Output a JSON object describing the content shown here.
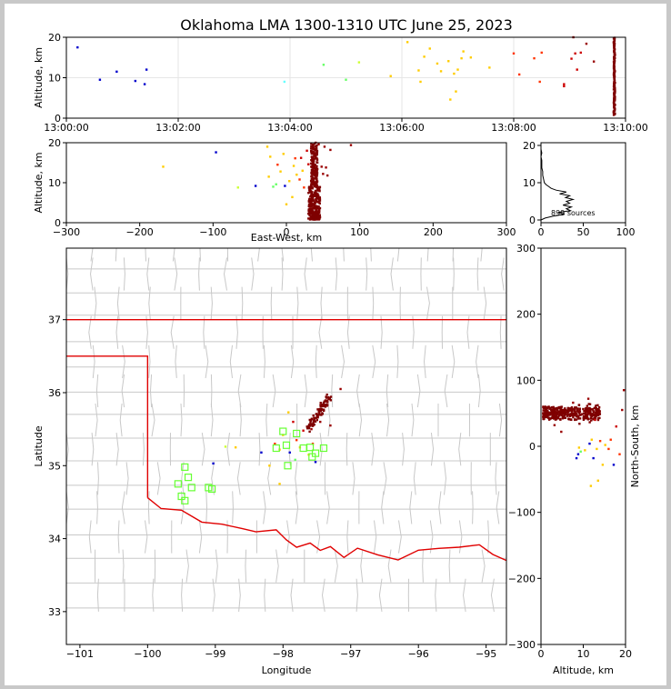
{
  "figure": {
    "title": "Oklahoma LMA 1300-1310 UTC June 25, 2023",
    "colors": {
      "background": "#c8c8c8",
      "panel": "#ffffff",
      "grid": "#e6e6e6",
      "county": "#c8c8c8",
      "state": "#e00000",
      "station": "#66ff33"
    }
  },
  "chart_data": [
    {
      "id": "time-height",
      "type": "scatter",
      "ylabel": "Altitude, km",
      "xlim": [
        "13:00:00",
        "13:10:00"
      ],
      "ylim": [
        0,
        20
      ],
      "xticks": [
        "13:00:00",
        "13:02:00",
        "13:04:00",
        "13:06:00",
        "13:08:00",
        "13:10:00"
      ],
      "yticks": [
        0,
        10,
        20
      ],
      "grid": true,
      "points": [
        {
          "t": "13:00:12",
          "alt": 17.5,
          "color": "#0000cc"
        },
        {
          "t": "13:00:36",
          "alt": 9.5,
          "color": "#0000cc"
        },
        {
          "t": "13:00:54",
          "alt": 11.5,
          "color": "#0000cc"
        },
        {
          "t": "13:01:14",
          "alt": 9.2,
          "color": "#0000cc"
        },
        {
          "t": "13:01:24",
          "alt": 8.4,
          "color": "#0000cc"
        },
        {
          "t": "13:01:26",
          "alt": 12.0,
          "color": "#0000cc"
        },
        {
          "t": "13:03:54",
          "alt": 9.0,
          "color": "#66ffff"
        },
        {
          "t": "13:04:36",
          "alt": 13.2,
          "color": "#66ff66"
        },
        {
          "t": "13:05:00",
          "alt": 9.5,
          "color": "#66ff66"
        },
        {
          "t": "13:05:14",
          "alt": 13.8,
          "color": "#ccff33"
        },
        {
          "t": "13:05:48",
          "alt": 10.4,
          "color": "#ffcc00"
        },
        {
          "t": "13:06:06",
          "alt": 18.8,
          "color": "#ffcc00"
        },
        {
          "t": "13:06:18",
          "alt": 11.8,
          "color": "#ffcc00"
        },
        {
          "t": "13:06:20",
          "alt": 9.0,
          "color": "#ffcc00"
        },
        {
          "t": "13:06:24",
          "alt": 15.2,
          "color": "#ffcc00"
        },
        {
          "t": "13:06:30",
          "alt": 17.2,
          "color": "#ffcc00"
        },
        {
          "t": "13:06:38",
          "alt": 13.5,
          "color": "#ffcc00"
        },
        {
          "t": "13:06:42",
          "alt": 11.6,
          "color": "#ffcc00"
        },
        {
          "t": "13:06:50",
          "alt": 14.1,
          "color": "#ffcc00"
        },
        {
          "t": "13:06:52",
          "alt": 4.6,
          "color": "#ffcc00"
        },
        {
          "t": "13:06:56",
          "alt": 11.0,
          "color": "#ffcc00"
        },
        {
          "t": "13:06:58",
          "alt": 6.6,
          "color": "#ffcc00"
        },
        {
          "t": "13:07:00",
          "alt": 12.0,
          "color": "#ffcc00"
        },
        {
          "t": "13:07:04",
          "alt": 14.8,
          "color": "#ffcc00"
        },
        {
          "t": "13:07:06",
          "alt": 16.5,
          "color": "#ffcc00"
        },
        {
          "t": "13:07:14",
          "alt": 15.0,
          "color": "#ffcc00"
        },
        {
          "t": "13:07:34",
          "alt": 12.5,
          "color": "#ffcc00"
        },
        {
          "t": "13:08:00",
          "alt": 16.0,
          "color": "#ff3300"
        },
        {
          "t": "13:08:06",
          "alt": 10.8,
          "color": "#ff3300"
        },
        {
          "t": "13:08:22",
          "alt": 14.8,
          "color": "#ff3300"
        },
        {
          "t": "13:08:28",
          "alt": 9.0,
          "color": "#ff3300"
        },
        {
          "t": "13:08:30",
          "alt": 16.2,
          "color": "#ff3300"
        },
        {
          "t": "13:08:54",
          "alt": 8.4,
          "color": "#cc0000"
        },
        {
          "t": "13:08:54",
          "alt": 7.9,
          "color": "#cc0000"
        },
        {
          "t": "13:09:02",
          "alt": 14.7,
          "color": "#cc0000"
        },
        {
          "t": "13:09:04",
          "alt": 20.0,
          "color": "#990000"
        },
        {
          "t": "13:09:06",
          "alt": 16.0,
          "color": "#cc0000"
        },
        {
          "t": "13:09:08",
          "alt": 12.0,
          "color": "#cc0000"
        },
        {
          "t": "13:09:12",
          "alt": 16.2,
          "color": "#cc0000"
        },
        {
          "t": "13:09:18",
          "alt": 18.4,
          "color": "#990000"
        },
        {
          "t": "13:09:26",
          "alt": 14.0,
          "color": "#990000"
        }
      ],
      "column": {
        "t": "13:09:48",
        "alt_min": 0.8,
        "alt_max": 20.0,
        "color": "#7f0000"
      }
    },
    {
      "id": "east-west-altitude",
      "type": "scatter",
      "xlabel": "East-West, km",
      "ylabel": "Altitude, km",
      "xlim": [
        -300,
        300
      ],
      "ylim": [
        0,
        20
      ],
      "xticks": [
        -300,
        -200,
        -100,
        0,
        100,
        200,
        300
      ],
      "yticks": [
        0,
        10,
        20
      ],
      "points": [
        {
          "x": -168,
          "alt": 14.0,
          "color": "#ffcc00"
        },
        {
          "x": -96,
          "alt": 17.6,
          "color": "#0000cc"
        },
        {
          "x": -66,
          "alt": 8.8,
          "color": "#ccff33"
        },
        {
          "x": -42,
          "alt": 9.2,
          "color": "#0000cc"
        },
        {
          "x": -26,
          "alt": 19.0,
          "color": "#ffcc00"
        },
        {
          "x": -24,
          "alt": 11.5,
          "color": "#ffcc00"
        },
        {
          "x": -22,
          "alt": 16.5,
          "color": "#ffcc00"
        },
        {
          "x": -18,
          "alt": 9.0,
          "color": "#66ff66"
        },
        {
          "x": -14,
          "alt": 9.6,
          "color": "#66ff66"
        },
        {
          "x": -12,
          "alt": 14.5,
          "color": "#ff3300"
        },
        {
          "x": -8,
          "alt": 12.8,
          "color": "#ffcc00"
        },
        {
          "x": -4,
          "alt": 17.2,
          "color": "#ffcc00"
        },
        {
          "x": -2,
          "alt": 9.2,
          "color": "#0000cc"
        },
        {
          "x": 0,
          "alt": 4.6,
          "color": "#ffcc00"
        },
        {
          "x": 4,
          "alt": 10.4,
          "color": "#ffcc00"
        },
        {
          "x": 8,
          "alt": 6.4,
          "color": "#ffcc00"
        },
        {
          "x": 10,
          "alt": 14.2,
          "color": "#ffcc00"
        },
        {
          "x": 12,
          "alt": 16.1,
          "color": "#ff3300"
        },
        {
          "x": 14,
          "alt": 12.0,
          "color": "#ffcc00"
        },
        {
          "x": 18,
          "alt": 10.8,
          "color": "#ff3300"
        },
        {
          "x": 20,
          "alt": 16.2,
          "color": "#cc0000"
        },
        {
          "x": 22,
          "alt": 13.0,
          "color": "#ffcc00"
        },
        {
          "x": 24,
          "alt": 8.8,
          "color": "#ff3300"
        },
        {
          "x": 28,
          "alt": 18.0,
          "color": "#cc0000"
        },
        {
          "x": 30,
          "alt": 14.6,
          "color": "#cc0000"
        },
        {
          "x": 38,
          "alt": 12.0,
          "color": "#990000"
        },
        {
          "x": 40,
          "alt": 20.0,
          "color": "#990000"
        },
        {
          "x": 44,
          "alt": 19.6,
          "color": "#990000"
        },
        {
          "x": 48,
          "alt": 14.0,
          "color": "#990000"
        },
        {
          "x": 50,
          "alt": 12.2,
          "color": "#990000"
        },
        {
          "x": 52,
          "alt": 19.0,
          "color": "#990000"
        },
        {
          "x": 54,
          "alt": 13.8,
          "color": "#990000"
        },
        {
          "x": 56,
          "alt": 11.8,
          "color": "#990000"
        },
        {
          "x": 60,
          "alt": 18.2,
          "color": "#990000"
        },
        {
          "x": 88,
          "alt": 19.4,
          "color": "#990000"
        }
      ],
      "column": {
        "x_min": 30,
        "x_max": 46,
        "alt_min": 0.8,
        "alt_max": 20.0,
        "color": "#7f0000"
      }
    },
    {
      "id": "source-histogram",
      "type": "line",
      "xlim": [
        0,
        100
      ],
      "ylim": [
        0,
        20
      ],
      "xticks": [
        0,
        50,
        100
      ],
      "yticks": [
        0,
        10,
        20
      ],
      "annotation": "899 sources",
      "profile": [
        {
          "alt": 0,
          "count": 0
        },
        {
          "alt": 0.5,
          "count": 5
        },
        {
          "alt": 1.0,
          "count": 14
        },
        {
          "alt": 1.5,
          "count": 28
        },
        {
          "alt": 2.0,
          "count": 20
        },
        {
          "alt": 2.5,
          "count": 35
        },
        {
          "alt": 3.0,
          "count": 30
        },
        {
          "alt": 3.5,
          "count": 36
        },
        {
          "alt": 4.0,
          "count": 26
        },
        {
          "alt": 4.5,
          "count": 34
        },
        {
          "alt": 5.0,
          "count": 30
        },
        {
          "alt": 5.5,
          "count": 38
        },
        {
          "alt": 6.0,
          "count": 29
        },
        {
          "alt": 6.5,
          "count": 34
        },
        {
          "alt": 7.0,
          "count": 22
        },
        {
          "alt": 7.5,
          "count": 30
        },
        {
          "alt": 8.0,
          "count": 18
        },
        {
          "alt": 8.5,
          "count": 12
        },
        {
          "alt": 9.0,
          "count": 9
        },
        {
          "alt": 9.5,
          "count": 6
        },
        {
          "alt": 10.0,
          "count": 4
        },
        {
          "alt": 11.0,
          "count": 3
        },
        {
          "alt": 12.0,
          "count": 2
        },
        {
          "alt": 13.0,
          "count": 2
        },
        {
          "alt": 14.0,
          "count": 1
        },
        {
          "alt": 15.0,
          "count": 1
        },
        {
          "alt": 16.0,
          "count": 1
        },
        {
          "alt": 17.0,
          "count": 0
        },
        {
          "alt": 18.0,
          "count": 1
        },
        {
          "alt": 19.0,
          "count": 0
        },
        {
          "alt": 20.0,
          "count": 0
        }
      ]
    },
    {
      "id": "plan-view",
      "type": "scatter",
      "xlabel": "Longitude",
      "ylabel": "Latitude",
      "xlim": [
        -101.2,
        -94.7
      ],
      "ylim": [
        32.55,
        37.98
      ],
      "xticks": [
        -101,
        -100,
        -99,
        -98,
        -97,
        -96,
        -95
      ],
      "yticks": [
        33,
        34,
        35,
        36,
        37
      ],
      "points": [
        {
          "lon": -98.85,
          "lat": 35.26,
          "color": "#ccff33"
        },
        {
          "lon": -98.7,
          "lat": 35.25,
          "color": "#ffcc00"
        },
        {
          "lon": -98.32,
          "lat": 35.18,
          "color": "#0000cc"
        },
        {
          "lon": -99.03,
          "lat": 35.03,
          "color": "#0000cc"
        },
        {
          "lon": -98.2,
          "lat": 35.0,
          "color": "#ffcc00"
        },
        {
          "lon": -98.12,
          "lat": 35.3,
          "color": "#ff3300"
        },
        {
          "lon": -98.05,
          "lat": 35.22,
          "color": "#ffcc00"
        },
        {
          "lon": -98.0,
          "lat": 35.42,
          "color": "#ffcc00"
        },
        {
          "lon": -97.92,
          "lat": 35.73,
          "color": "#ffcc00"
        },
        {
          "lon": -97.9,
          "lat": 35.18,
          "color": "#0000cc"
        },
        {
          "lon": -97.85,
          "lat": 35.6,
          "color": "#cc0000"
        },
        {
          "lon": -97.82,
          "lat": 35.08,
          "color": "#66ff66"
        },
        {
          "lon": -97.8,
          "lat": 35.35,
          "color": "#ff3300"
        },
        {
          "lon": -97.75,
          "lat": 35.25,
          "color": "#ffcc00"
        },
        {
          "lon": -97.7,
          "lat": 35.48,
          "color": "#cc0000"
        },
        {
          "lon": -97.62,
          "lat": 35.15,
          "color": "#ffcc00"
        },
        {
          "lon": -97.58,
          "lat": 35.5,
          "color": "#990000"
        },
        {
          "lon": -97.56,
          "lat": 35.3,
          "color": "#ff3300"
        },
        {
          "lon": -97.52,
          "lat": 35.05,
          "color": "#0000cc"
        },
        {
          "lon": -97.45,
          "lat": 35.6,
          "color": "#990000"
        },
        {
          "lon": -97.35,
          "lat": 35.82,
          "color": "#990000"
        },
        {
          "lon": -97.3,
          "lat": 35.55,
          "color": "#990000"
        },
        {
          "lon": -97.15,
          "lat": 36.05,
          "color": "#990000"
        },
        {
          "lon": -98.05,
          "lat": 34.75,
          "color": "#ffcc00"
        }
      ],
      "cluster": {
        "lon_min": -97.62,
        "lon_max": -97.32,
        "lat_min": 35.5,
        "lat_max": 35.95,
        "color": "#7f0000"
      },
      "stations": [
        {
          "lon": -98.0,
          "lat": 35.47
        },
        {
          "lon": -98.1,
          "lat": 35.24
        },
        {
          "lon": -97.95,
          "lat": 35.28
        },
        {
          "lon": -97.93,
          "lat": 35.0
        },
        {
          "lon": -97.8,
          "lat": 35.44
        },
        {
          "lon": -97.7,
          "lat": 35.24
        },
        {
          "lon": -97.6,
          "lat": 35.25
        },
        {
          "lon": -97.57,
          "lat": 35.12
        },
        {
          "lon": -97.52,
          "lat": 35.17
        },
        {
          "lon": -97.4,
          "lat": 35.24
        },
        {
          "lon": -99.45,
          "lat": 34.98
        },
        {
          "lon": -99.4,
          "lat": 34.84
        },
        {
          "lon": -99.55,
          "lat": 34.75
        },
        {
          "lon": -99.35,
          "lat": 34.7
        },
        {
          "lon": -99.5,
          "lat": 34.58
        },
        {
          "lon": -99.45,
          "lat": 34.52
        },
        {
          "lon": -99.1,
          "lat": 34.7
        },
        {
          "lon": -99.05,
          "lat": 34.68
        }
      ]
    },
    {
      "id": "north-south-altitude",
      "type": "scatter",
      "xlabel": "Altitude, km",
      "ylabel": "North-South, km",
      "xlim": [
        0,
        20
      ],
      "ylim": [
        -300,
        300
      ],
      "xticks": [
        0,
        10,
        20
      ],
      "yticks": [
        -300,
        -200,
        -100,
        0,
        100,
        200,
        300
      ],
      "points": [
        {
          "alt": 9.0,
          "ns": -2,
          "color": "#ffcc00"
        },
        {
          "alt": 10.4,
          "ns": -6,
          "color": "#ffcc00"
        },
        {
          "alt": 8.4,
          "ns": -18,
          "color": "#0000cc"
        },
        {
          "alt": 8.8,
          "ns": -12,
          "color": "#0000cc"
        },
        {
          "alt": 9.4,
          "ns": -8,
          "color": "#66ff66"
        },
        {
          "alt": 11.5,
          "ns": 4,
          "color": "#0000cc"
        },
        {
          "alt": 11.8,
          "ns": -60,
          "color": "#ffcc00"
        },
        {
          "alt": 12.0,
          "ns": 10,
          "color": "#ffcc00"
        },
        {
          "alt": 12.4,
          "ns": -18,
          "color": "#0000cc"
        },
        {
          "alt": 13.2,
          "ns": -4,
          "color": "#ffcc00"
        },
        {
          "alt": 13.5,
          "ns": -52,
          "color": "#ffcc00"
        },
        {
          "alt": 14.0,
          "ns": 8,
          "color": "#ff3300"
        },
        {
          "alt": 14.6,
          "ns": -28,
          "color": "#ffcc00"
        },
        {
          "alt": 15.2,
          "ns": 2,
          "color": "#ffcc00"
        },
        {
          "alt": 16.0,
          "ns": -4,
          "color": "#ff3300"
        },
        {
          "alt": 16.5,
          "ns": 10,
          "color": "#ff3300"
        },
        {
          "alt": 17.2,
          "ns": -28,
          "color": "#0000cc"
        },
        {
          "alt": 17.8,
          "ns": 30,
          "color": "#cc0000"
        },
        {
          "alt": 18.6,
          "ns": -12,
          "color": "#ff3300"
        },
        {
          "alt": 19.2,
          "ns": 55,
          "color": "#990000"
        },
        {
          "alt": 19.6,
          "ns": 85,
          "color": "#990000"
        },
        {
          "alt": 12.8,
          "ns": 40,
          "color": "#cc0000"
        },
        {
          "alt": 11.2,
          "ns": 72,
          "color": "#990000"
        },
        {
          "alt": 7.6,
          "ns": 66,
          "color": "#990000"
        },
        {
          "alt": 3.2,
          "ns": 32,
          "color": "#990000"
        },
        {
          "alt": 4.8,
          "ns": 22,
          "color": "#990000"
        }
      ],
      "band": {
        "alt_min": 0.5,
        "alt_max": 14.0,
        "ns_min": 40,
        "ns_max": 60,
        "color": "#7f0000"
      }
    }
  ]
}
